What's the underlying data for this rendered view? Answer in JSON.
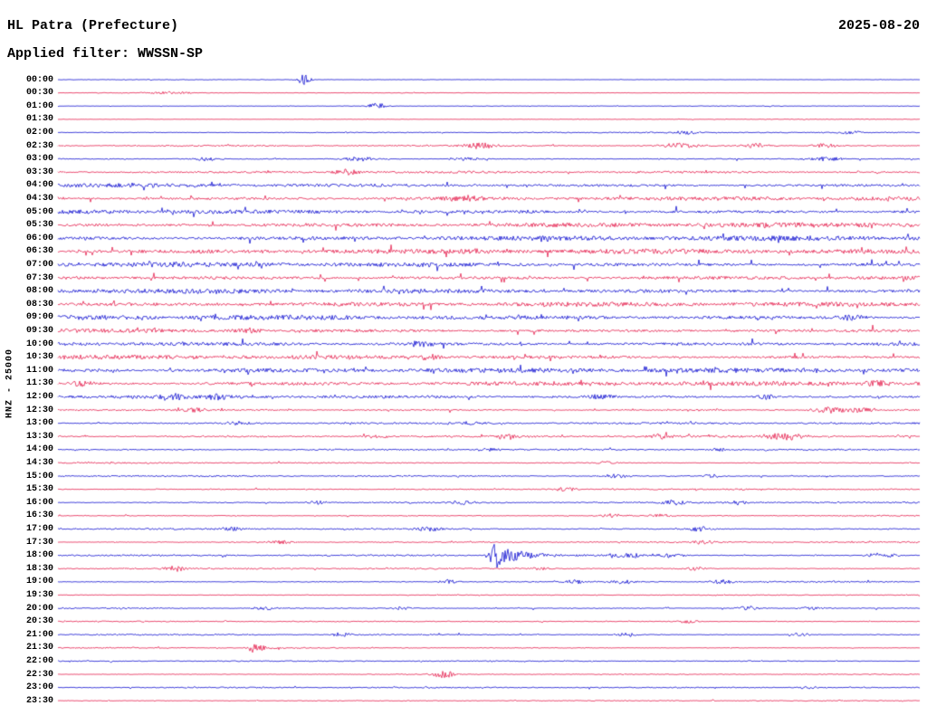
{
  "header": {
    "title": "HL Patra (Prefecture)",
    "date": "2025-08-20",
    "filter_label": "Applied filter: WWSSN-SP"
  },
  "y_axis": {
    "label": "HNZ - 25000"
  },
  "chart_data": {
    "type": "line",
    "title": "HL Patra (Prefecture)",
    "subtitle": "Applied filter: WWSSN-SP",
    "date": "2025-08-20",
    "station_channel": "HNZ",
    "scale_value": 25000,
    "minutes_per_row": 30,
    "legend": "off",
    "grid": "off",
    "colors": {
      "blue": "#0000cd",
      "red": "#e31243"
    },
    "rows": [
      {
        "time": "00:00",
        "color": "blue",
        "noise": 0.35,
        "events": [
          {
            "p": 0.285,
            "a": 6,
            "w": 5
          }
        ]
      },
      {
        "time": "00:30",
        "color": "red",
        "noise": 0.35,
        "events": [
          {
            "p": 0.13,
            "a": 1.2,
            "w": 18
          }
        ]
      },
      {
        "time": "01:00",
        "color": "blue",
        "noise": 0.35,
        "events": [
          {
            "p": 0.37,
            "a": 4,
            "w": 7
          }
        ]
      },
      {
        "time": "01:30",
        "color": "red",
        "noise": 0.4,
        "events": []
      },
      {
        "time": "02:00",
        "color": "blue",
        "noise": 0.6,
        "events": [
          {
            "p": 0.73,
            "a": 2,
            "w": 10
          },
          {
            "p": 0.92,
            "a": 1.6,
            "w": 8
          }
        ]
      },
      {
        "time": "02:30",
        "color": "red",
        "noise": 0.8,
        "events": [
          {
            "p": 0.49,
            "a": 3,
            "w": 12
          },
          {
            "p": 0.72,
            "a": 2.4,
            "w": 14
          },
          {
            "p": 0.81,
            "a": 2.4,
            "w": 10
          },
          {
            "p": 0.89,
            "a": 2.4,
            "w": 10
          }
        ]
      },
      {
        "time": "03:00",
        "color": "blue",
        "noise": 0.8,
        "events": [
          {
            "p": 0.17,
            "a": 2,
            "w": 10
          },
          {
            "p": 0.35,
            "a": 2.4,
            "w": 12
          },
          {
            "p": 0.475,
            "a": 2,
            "w": 10
          },
          {
            "p": 0.89,
            "a": 2.4,
            "w": 14
          }
        ]
      },
      {
        "time": "03:30",
        "color": "red",
        "noise": 1.2,
        "events": [
          {
            "p": 0.335,
            "a": 3,
            "w": 9
          }
        ]
      },
      {
        "time": "04:00",
        "color": "blue",
        "noise": 2.4,
        "events": []
      },
      {
        "time": "04:30",
        "color": "red",
        "noise": 2.4,
        "events": [
          {
            "p": 0.47,
            "a": 2.5,
            "w": 14
          }
        ]
      },
      {
        "time": "05:00",
        "color": "blue",
        "noise": 2.8,
        "events": []
      },
      {
        "time": "05:30",
        "color": "red",
        "noise": 2.8,
        "events": []
      },
      {
        "time": "06:00",
        "color": "blue",
        "noise": 3.0,
        "events": []
      },
      {
        "time": "06:30",
        "color": "red",
        "noise": 2.8,
        "events": []
      },
      {
        "time": "07:00",
        "color": "blue",
        "noise": 3.0,
        "events": []
      },
      {
        "time": "07:30",
        "color": "red",
        "noise": 2.8,
        "events": []
      },
      {
        "time": "08:00",
        "color": "blue",
        "noise": 2.8,
        "events": []
      },
      {
        "time": "08:30",
        "color": "red",
        "noise": 2.6,
        "events": []
      },
      {
        "time": "09:00",
        "color": "blue",
        "noise": 2.8,
        "events": [
          {
            "p": 0.92,
            "a": 2.5,
            "w": 12
          }
        ]
      },
      {
        "time": "09:30",
        "color": "red",
        "noise": 2.6,
        "events": [
          {
            "p": 0.22,
            "a": 2,
            "w": 10
          }
        ]
      },
      {
        "time": "10:00",
        "color": "blue",
        "noise": 2.8,
        "events": [
          {
            "p": 0.42,
            "a": 2.5,
            "w": 9
          }
        ]
      },
      {
        "time": "10:30",
        "color": "red",
        "noise": 2.6,
        "events": [
          {
            "p": 0.43,
            "a": 2.5,
            "w": 9
          }
        ]
      },
      {
        "time": "11:00",
        "color": "blue",
        "noise": 2.7,
        "events": []
      },
      {
        "time": "11:30",
        "color": "red",
        "noise": 2.5,
        "events": [
          {
            "p": 0.03,
            "a": 2.5,
            "w": 9
          },
          {
            "p": 0.95,
            "a": 2.5,
            "w": 10
          }
        ]
      },
      {
        "time": "12:00",
        "color": "blue",
        "noise": 2.0,
        "events": [
          {
            "p": 0.135,
            "a": 2.2,
            "w": 9
          },
          {
            "p": 0.185,
            "a": 2.2,
            "w": 9
          },
          {
            "p": 0.63,
            "a": 2.2,
            "w": 9
          },
          {
            "p": 0.82,
            "a": 2.6,
            "w": 7
          }
        ]
      },
      {
        "time": "12:30",
        "color": "red",
        "noise": 1.3,
        "events": [
          {
            "p": 0.16,
            "a": 1.8,
            "w": 9
          },
          {
            "p": 0.895,
            "a": 3.2,
            "w": 13
          },
          {
            "p": 0.93,
            "a": 2.2,
            "w": 9
          }
        ]
      },
      {
        "time": "13:00",
        "color": "blue",
        "noise": 1.1,
        "events": [
          {
            "p": 0.21,
            "a": 1.8,
            "w": 9
          },
          {
            "p": 0.48,
            "a": 1.4,
            "w": 9
          }
        ]
      },
      {
        "time": "13:30",
        "color": "red",
        "noise": 1.1,
        "events": [
          {
            "p": 0.37,
            "a": 1.8,
            "w": 9
          },
          {
            "p": 0.52,
            "a": 1.8,
            "w": 9
          },
          {
            "p": 0.7,
            "a": 2.2,
            "w": 9
          },
          {
            "p": 0.845,
            "a": 4,
            "w": 14
          }
        ]
      },
      {
        "time": "14:00",
        "color": "blue",
        "noise": 0.9,
        "events": [
          {
            "p": 0.5,
            "a": 1.4,
            "w": 8
          },
          {
            "p": 0.77,
            "a": 1.4,
            "w": 8
          }
        ]
      },
      {
        "time": "14:30",
        "color": "red",
        "noise": 0.8,
        "events": [
          {
            "p": 0.635,
            "a": 1.8,
            "w": 8
          }
        ]
      },
      {
        "time": "15:00",
        "color": "blue",
        "noise": 0.9,
        "events": [
          {
            "p": 0.645,
            "a": 2.2,
            "w": 9
          },
          {
            "p": 0.76,
            "a": 1.8,
            "w": 8
          }
        ]
      },
      {
        "time": "15:30",
        "color": "red",
        "noise": 0.8,
        "events": [
          {
            "p": 0.59,
            "a": 1.8,
            "w": 9
          }
        ]
      },
      {
        "time": "16:00",
        "color": "blue",
        "noise": 0.9,
        "events": [
          {
            "p": 0.3,
            "a": 1.8,
            "w": 8
          },
          {
            "p": 0.47,
            "a": 1.8,
            "w": 8
          },
          {
            "p": 0.715,
            "a": 2.2,
            "w": 9
          },
          {
            "p": 0.79,
            "a": 1.8,
            "w": 8
          }
        ]
      },
      {
        "time": "16:30",
        "color": "red",
        "noise": 0.8,
        "events": [
          {
            "p": 0.645,
            "a": 2.2,
            "w": 9
          },
          {
            "p": 0.7,
            "a": 1.8,
            "w": 8
          }
        ]
      },
      {
        "time": "17:00",
        "color": "blue",
        "noise": 0.9,
        "events": [
          {
            "p": 0.2,
            "a": 1.8,
            "w": 8
          },
          {
            "p": 0.43,
            "a": 2.2,
            "w": 9
          },
          {
            "p": 0.745,
            "a": 2.6,
            "w": 9
          }
        ]
      },
      {
        "time": "17:30",
        "color": "red",
        "noise": 0.8,
        "events": [
          {
            "p": 0.26,
            "a": 1.8,
            "w": 9
          },
          {
            "p": 0.75,
            "a": 1.8,
            "w": 9
          }
        ]
      },
      {
        "time": "18:00",
        "color": "blue",
        "noise": 0.9,
        "events": [
          {
            "p": 0.505,
            "a": 14,
            "w": 4,
            "tail": 26
          },
          {
            "p": 0.66,
            "a": 2.6,
            "w": 11
          },
          {
            "p": 0.71,
            "a": 2.2,
            "w": 9
          },
          {
            "p": 0.955,
            "a": 2.6,
            "w": 11
          }
        ]
      },
      {
        "time": "18:30",
        "color": "red",
        "noise": 0.8,
        "events": [
          {
            "p": 0.135,
            "a": 3.2,
            "w": 7
          },
          {
            "p": 0.56,
            "a": 1.4,
            "w": 8
          },
          {
            "p": 0.74,
            "a": 1.8,
            "w": 8
          }
        ]
      },
      {
        "time": "19:00",
        "color": "blue",
        "noise": 0.8,
        "events": [
          {
            "p": 0.455,
            "a": 2.2,
            "w": 8
          },
          {
            "p": 0.6,
            "a": 1.8,
            "w": 8
          },
          {
            "p": 0.655,
            "a": 2.2,
            "w": 8
          },
          {
            "p": 0.77,
            "a": 2.2,
            "w": 8
          }
        ]
      },
      {
        "time": "19:30",
        "color": "red",
        "noise": 0.6,
        "events": []
      },
      {
        "time": "20:00",
        "color": "blue",
        "noise": 0.8,
        "events": [
          {
            "p": 0.24,
            "a": 1.8,
            "w": 8
          },
          {
            "p": 0.4,
            "a": 1.8,
            "w": 8
          },
          {
            "p": 0.8,
            "a": 2.2,
            "w": 9
          },
          {
            "p": 0.875,
            "a": 1.8,
            "w": 8
          }
        ]
      },
      {
        "time": "20:30",
        "color": "red",
        "noise": 0.7,
        "events": [
          {
            "p": 0.73,
            "a": 1.8,
            "w": 9
          }
        ]
      },
      {
        "time": "21:00",
        "color": "blue",
        "noise": 0.8,
        "events": [
          {
            "p": 0.33,
            "a": 1.8,
            "w": 8
          },
          {
            "p": 0.66,
            "a": 1.8,
            "w": 8
          },
          {
            "p": 0.86,
            "a": 1.8,
            "w": 8
          }
        ]
      },
      {
        "time": "21:30",
        "color": "red",
        "noise": 0.6,
        "events": [
          {
            "p": 0.227,
            "a": 5,
            "w": 4,
            "tail": 12
          }
        ]
      },
      {
        "time": "22:00",
        "color": "blue",
        "noise": 0.6,
        "events": []
      },
      {
        "time": "22:30",
        "color": "red",
        "noise": 0.55,
        "events": [
          {
            "p": 0.447,
            "a": 4,
            "w": 9
          }
        ]
      },
      {
        "time": "23:00",
        "color": "blue",
        "noise": 0.7,
        "events": [
          {
            "p": 0.87,
            "a": 1.4,
            "w": 8
          }
        ]
      },
      {
        "time": "23:30",
        "color": "red",
        "noise": 0.55,
        "events": []
      }
    ]
  }
}
